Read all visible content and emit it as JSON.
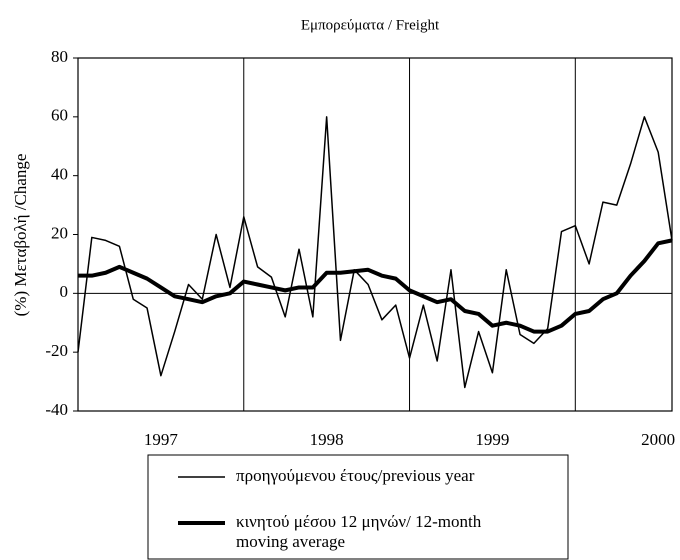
{
  "chart_data": {
    "type": "line",
    "title": "Εμπορεύματα / Freight",
    "y_label": "(%) Μεταβολή  /Change",
    "categories": [
      null,
      null,
      null,
      null,
      null,
      null,
      "1997",
      null,
      null,
      null,
      null,
      null,
      null,
      null,
      null,
      null,
      null,
      null,
      "1998",
      null,
      null,
      null,
      null,
      null,
      null,
      null,
      null,
      null,
      null,
      null,
      "1999",
      null,
      null,
      null,
      null,
      null,
      null,
      null,
      null,
      null,
      null,
      null,
      "2000",
      null
    ],
    "series": [
      {
        "name": "προηγούμενου έτους/previous year",
        "color": "#000000",
        "values": [
          -20,
          19,
          18,
          16,
          -2,
          -5,
          -28,
          -13,
          3,
          -2,
          20,
          2,
          26,
          9,
          5.5,
          -8,
          15,
          -8,
          60,
          -16,
          8,
          3,
          -9,
          -4,
          -22,
          -4,
          -23,
          8,
          -32,
          -13,
          -27,
          8,
          -14,
          -17,
          -12,
          21,
          23,
          10,
          31,
          30,
          44,
          60,
          48,
          18
        ]
      },
      {
        "name": "κινητού μέσου 12 μηνών/ 12-month moving average",
        "color": "#000000",
        "values": [
          6,
          6,
          7,
          9,
          7,
          5,
          2,
          -1,
          -2,
          -3,
          -1,
          0,
          4,
          3,
          2,
          1,
          2,
          2,
          7,
          7,
          7.5,
          8,
          6,
          5,
          1,
          -1,
          -3,
          -2,
          -6,
          -7,
          -11,
          -10,
          -11,
          -13,
          -13,
          -11,
          -7,
          -6,
          -2,
          0,
          6,
          11,
          17,
          18
        ]
      }
    ],
    "ylim": [
      -40,
      80
    ],
    "yticks": [
      -40,
      -20,
      0,
      20,
      40,
      60,
      80
    ]
  }
}
